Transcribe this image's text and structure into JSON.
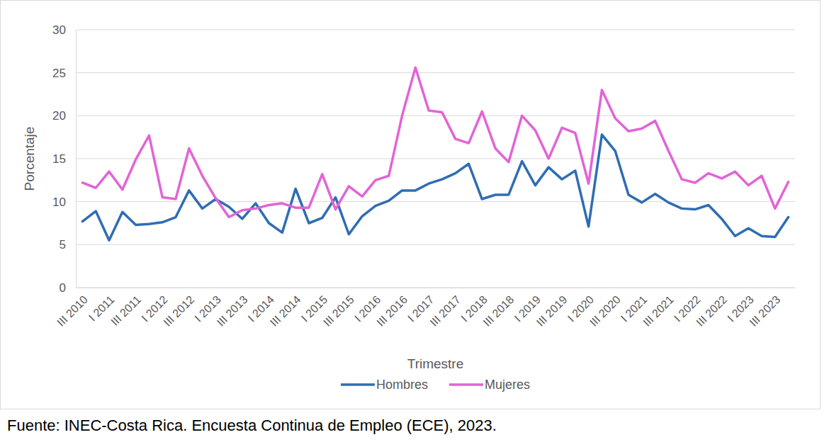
{
  "chart_data": {
    "type": "line",
    "x_label": "Trimestre",
    "y_label": "Porcentaje",
    "source": "Fuente: INEC-Costa Rica. Encuesta Continua de Empleo (ECE), 2023.",
    "categories": [
      "III 2010",
      null,
      "I 2011",
      null,
      "III 2011",
      null,
      "I 2012",
      null,
      "III 2012",
      null,
      "I 2013",
      null,
      "III 2013",
      null,
      "I 2014",
      null,
      "III 2014",
      null,
      "I 2015",
      null,
      "III 2015",
      null,
      "I 2016",
      null,
      "III 2016",
      null,
      "I 2017",
      null,
      "III 2017",
      null,
      "I 2018",
      null,
      "III 2018",
      null,
      "I 2019",
      null,
      "III 2019",
      null,
      "I 2020",
      null,
      "III 2020",
      null,
      "I 2021",
      null,
      "III 2021",
      null,
      "I 2022",
      null,
      "III 2022",
      null,
      "I 2023",
      null,
      "III 2023",
      null
    ],
    "series": [
      {
        "name": "Hombres",
        "color": "#2f6db3",
        "values": [
          7.7,
          8.9,
          5.5,
          8.8,
          7.3,
          7.4,
          7.6,
          8.2,
          11.3,
          9.2,
          10.3,
          9.4,
          8.0,
          9.8,
          7.5,
          6.4,
          11.5,
          7.5,
          8.1,
          10.5,
          6.2,
          8.3,
          9.5,
          10.1,
          11.3,
          11.3,
          12.1,
          12.6,
          13.3,
          14.4,
          10.3,
          10.8,
          10.8,
          14.7,
          11.9,
          14.0,
          12.6,
          13.6,
          7.1,
          17.8,
          15.9,
          10.8,
          9.9,
          10.9,
          9.9,
          9.2,
          9.1,
          9.6,
          8.0,
          6.0,
          6.9,
          6.0,
          5.9,
          8.2
        ]
      },
      {
        "name": "Mujeres",
        "color": "#e264d6",
        "values": [
          12.2,
          11.6,
          13.5,
          11.4,
          14.9,
          17.7,
          10.5,
          10.3,
          16.2,
          13.0,
          10.4,
          8.2,
          9.0,
          9.2,
          9.6,
          9.8,
          9.3,
          9.3,
          13.2,
          9.1,
          11.8,
          10.6,
          12.5,
          13.0,
          20.0,
          25.6,
          20.6,
          20.4,
          17.3,
          16.8,
          20.5,
          16.2,
          14.6,
          20.0,
          18.3,
          15.0,
          18.6,
          18.0,
          12.1,
          23.0,
          19.7,
          18.2,
          18.5,
          19.4,
          15.9,
          12.6,
          12.2,
          13.3,
          12.7,
          13.5,
          11.9,
          13.0,
          9.2,
          12.3
        ]
      }
    ],
    "ylim": [
      0,
      30
    ],
    "yticks": [
      0,
      5,
      10,
      15,
      20,
      25,
      30
    ],
    "grid": true,
    "legend": "bottom"
  }
}
